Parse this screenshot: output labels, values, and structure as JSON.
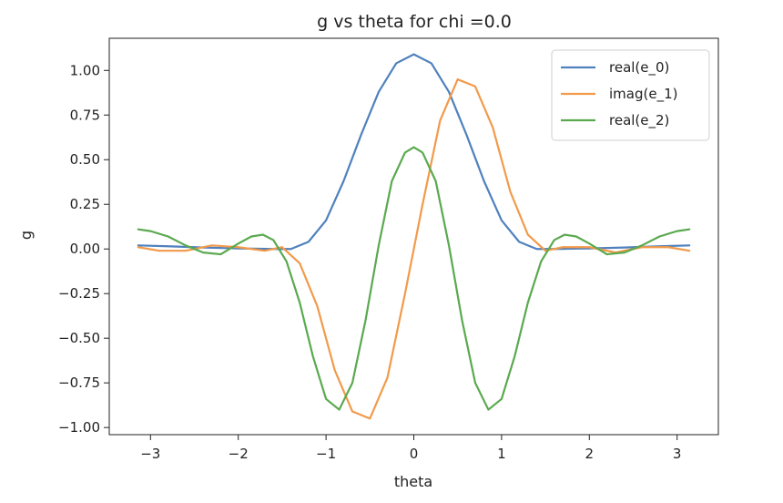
{
  "chart_data": {
    "type": "line",
    "title": "g vs theta for chi =0.0",
    "xlabel": "theta",
    "ylabel": "g",
    "xlim": [
      -3.47,
      3.47
    ],
    "ylim": [
      -1.04,
      1.18
    ],
    "xticks": [
      -3,
      -2,
      -1,
      0,
      1,
      2,
      3
    ],
    "xtick_labels": [
      "−3",
      "−2",
      "−1",
      "0",
      "1",
      "2",
      "3"
    ],
    "yticks": [
      -1.0,
      -0.75,
      -0.5,
      -0.25,
      0.0,
      0.25,
      0.5,
      0.75,
      1.0
    ],
    "ytick_labels": [
      "−1.00",
      "−0.75",
      "−0.50",
      "−0.25",
      "0.00",
      "0.25",
      "0.50",
      "0.75",
      "1.00"
    ],
    "grid": false,
    "legend_position": "top-right",
    "series": [
      {
        "name": "real(e_0)",
        "color": "#4f81bd",
        "x": [
          -3.14,
          -2.8,
          -2.4,
          -2.0,
          -1.6,
          -1.4,
          -1.2,
          -1.0,
          -0.8,
          -0.6,
          -0.4,
          -0.2,
          0.0,
          0.2,
          0.4,
          0.6,
          0.8,
          1.0,
          1.2,
          1.4,
          1.6,
          2.0,
          2.4,
          2.8,
          3.14
        ],
        "y": [
          0.02,
          0.015,
          0.008,
          0.003,
          0.0,
          0.0,
          0.04,
          0.16,
          0.38,
          0.64,
          0.88,
          1.04,
          1.09,
          1.04,
          0.88,
          0.64,
          0.38,
          0.16,
          0.04,
          0.0,
          0.0,
          0.003,
          0.008,
          0.015,
          0.02
        ]
      },
      {
        "name": "imag(e_1)",
        "color": "#f29a4a",
        "x": [
          -3.14,
          -2.9,
          -2.6,
          -2.3,
          -2.0,
          -1.7,
          -1.5,
          -1.3,
          -1.1,
          -0.9,
          -0.7,
          -0.5,
          -0.3,
          -0.1,
          0.0,
          0.1,
          0.3,
          0.5,
          0.7,
          0.9,
          1.1,
          1.3,
          1.5,
          1.7,
          2.0,
          2.3,
          2.6,
          2.9,
          3.14
        ],
        "y": [
          0.01,
          -0.01,
          -0.01,
          0.02,
          0.01,
          -0.01,
          0.01,
          -0.08,
          -0.32,
          -0.68,
          -0.91,
          -0.95,
          -0.72,
          -0.25,
          0.0,
          0.25,
          0.72,
          0.95,
          0.91,
          0.68,
          0.32,
          0.08,
          -0.01,
          0.01,
          0.01,
          -0.02,
          0.01,
          0.01,
          -0.01
        ]
      },
      {
        "name": "real(e_2)",
        "color": "#5aa94f",
        "x": [
          -3.14,
          -3.0,
          -2.8,
          -2.6,
          -2.4,
          -2.2,
          -2.0,
          -1.85,
          -1.72,
          -1.6,
          -1.45,
          -1.3,
          -1.15,
          -1.0,
          -0.85,
          -0.7,
          -0.55,
          -0.4,
          -0.25,
          -0.1,
          0.0,
          0.1,
          0.25,
          0.4,
          0.55,
          0.7,
          0.85,
          1.0,
          1.15,
          1.3,
          1.45,
          1.6,
          1.72,
          1.85,
          2.0,
          2.2,
          2.4,
          2.6,
          2.8,
          3.0,
          3.14
        ],
        "y": [
          0.11,
          0.1,
          0.07,
          0.02,
          -0.02,
          -0.03,
          0.03,
          0.07,
          0.08,
          0.05,
          -0.07,
          -0.3,
          -0.6,
          -0.84,
          -0.9,
          -0.75,
          -0.4,
          0.02,
          0.38,
          0.54,
          0.57,
          0.54,
          0.38,
          0.02,
          -0.4,
          -0.75,
          -0.9,
          -0.84,
          -0.6,
          -0.3,
          -0.07,
          0.05,
          0.08,
          0.07,
          0.03,
          -0.03,
          -0.02,
          0.02,
          0.07,
          0.1,
          0.11
        ]
      }
    ]
  }
}
